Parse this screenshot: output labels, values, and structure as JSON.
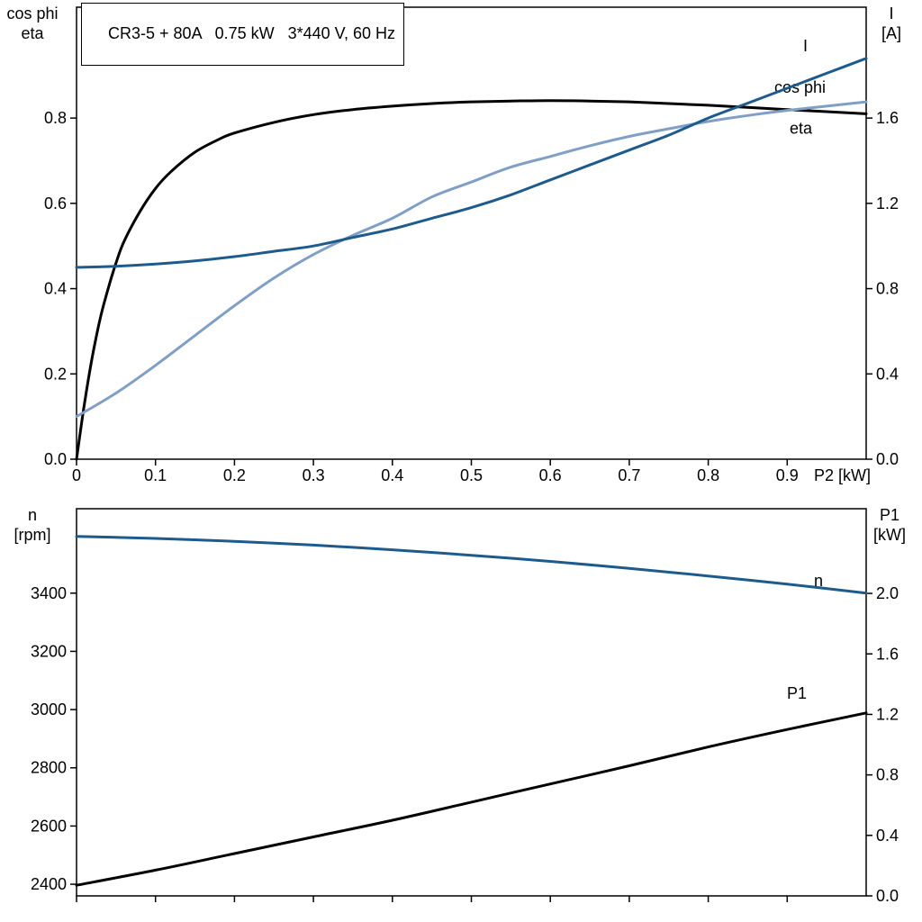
{
  "colors": {
    "black": "#000000",
    "dark_blue": "#1d5b8c",
    "light_blue": "#7f9fc6",
    "background": "#ffffff"
  },
  "title_box": {
    "text": "CR3-5 + 80A   0.75 kW   3*440 V, 60 Hz"
  },
  "chart_data": [
    {
      "type": "line",
      "name": "motor-efficiency-chart",
      "title": "CR3-5 + 80A   0.75 kW   3*440 V, 60 Hz",
      "grid": false,
      "x": {
        "label_end": "P2 [kW]",
        "min": 0,
        "max": 1.0,
        "ticks": [
          0,
          0.1,
          0.2,
          0.3,
          0.4,
          0.5,
          0.6,
          0.7,
          0.8,
          0.9
        ],
        "tick_labels": [
          "0",
          "0.1",
          "0.2",
          "0.3",
          "0.4",
          "0.5",
          "0.6",
          "0.7",
          "0.8",
          "0.9"
        ]
      },
      "left_axis": {
        "title_lines": [
          "cos phi",
          "eta"
        ],
        "min": 0,
        "max": 1.06,
        "ticks": [
          0.0,
          0.2,
          0.4,
          0.6,
          0.8
        ],
        "tick_labels": [
          "0.0",
          "0.2",
          "0.4",
          "0.6",
          "0.8"
        ]
      },
      "right_axis": {
        "title_lines": [
          "I",
          "[A]"
        ],
        "min": 0,
        "max": 2.12,
        "ticks": [
          0.0,
          0.4,
          0.8,
          1.2,
          1.6
        ],
        "tick_labels": [
          "0.0",
          "0.4",
          "0.8",
          "1.2",
          "1.6"
        ]
      },
      "series": [
        {
          "name": "eta",
          "label": "eta",
          "axis": "left",
          "color_key": "black",
          "label_dx": -85,
          "label_dy": 22,
          "points": [
            [
              0,
              0
            ],
            [
              0.01,
              0.13
            ],
            [
              0.02,
              0.24
            ],
            [
              0.03,
              0.33
            ],
            [
              0.04,
              0.4
            ],
            [
              0.05,
              0.46
            ],
            [
              0.06,
              0.51
            ],
            [
              0.08,
              0.58
            ],
            [
              0.1,
              0.635
            ],
            [
              0.12,
              0.675
            ],
            [
              0.15,
              0.72
            ],
            [
              0.18,
              0.75
            ],
            [
              0.2,
              0.765
            ],
            [
              0.25,
              0.79
            ],
            [
              0.3,
              0.808
            ],
            [
              0.35,
              0.82
            ],
            [
              0.4,
              0.828
            ],
            [
              0.45,
              0.834
            ],
            [
              0.5,
              0.838
            ],
            [
              0.55,
              0.84
            ],
            [
              0.6,
              0.841
            ],
            [
              0.65,
              0.84
            ],
            [
              0.7,
              0.838
            ],
            [
              0.75,
              0.834
            ],
            [
              0.8,
              0.83
            ],
            [
              0.85,
              0.825
            ],
            [
              0.9,
              0.82
            ],
            [
              0.95,
              0.815
            ],
            [
              1.0,
              0.81
            ]
          ]
        },
        {
          "name": "cos-phi",
          "label": "cos phi",
          "axis": "left",
          "color_key": "light_blue",
          "label_dx": -102,
          "label_dy": -10,
          "points": [
            [
              0,
              0.1
            ],
            [
              0.05,
              0.155
            ],
            [
              0.1,
              0.22
            ],
            [
              0.15,
              0.29
            ],
            [
              0.2,
              0.36
            ],
            [
              0.25,
              0.425
            ],
            [
              0.3,
              0.48
            ],
            [
              0.35,
              0.525
            ],
            [
              0.4,
              0.565
            ],
            [
              0.45,
              0.615
            ],
            [
              0.5,
              0.65
            ],
            [
              0.55,
              0.685
            ],
            [
              0.6,
              0.71
            ],
            [
              0.65,
              0.735
            ],
            [
              0.7,
              0.757
            ],
            [
              0.75,
              0.775
            ],
            [
              0.8,
              0.792
            ],
            [
              0.85,
              0.806
            ],
            [
              0.9,
              0.818
            ],
            [
              0.95,
              0.828
            ],
            [
              1.0,
              0.838
            ]
          ]
        },
        {
          "name": "current",
          "label": "I",
          "axis": "right",
          "color_key": "dark_blue",
          "label_dx": -70,
          "label_dy": -8,
          "points": [
            [
              0,
              0.9
            ],
            [
              0.05,
              0.905
            ],
            [
              0.1,
              0.915
            ],
            [
              0.15,
              0.93
            ],
            [
              0.2,
              0.95
            ],
            [
              0.25,
              0.975
            ],
            [
              0.3,
              1.0
            ],
            [
              0.35,
              1.04
            ],
            [
              0.4,
              1.08
            ],
            [
              0.45,
              1.13
            ],
            [
              0.5,
              1.18
            ],
            [
              0.55,
              1.24
            ],
            [
              0.6,
              1.31
            ],
            [
              0.65,
              1.38
            ],
            [
              0.7,
              1.45
            ],
            [
              0.75,
              1.52
            ],
            [
              0.8,
              1.6
            ],
            [
              0.85,
              1.67
            ],
            [
              0.9,
              1.74
            ],
            [
              0.95,
              1.81
            ],
            [
              1.0,
              1.88
            ]
          ]
        }
      ]
    },
    {
      "type": "line",
      "name": "speed-power-chart",
      "title": "",
      "grid": false,
      "x": {
        "label_end": "",
        "min": 0,
        "max": 1.0,
        "ticks": [
          0,
          0.1,
          0.2,
          0.3,
          0.4,
          0.5,
          0.6,
          0.7,
          0.8,
          0.9
        ],
        "tick_labels": []
      },
      "left_axis": {
        "title_lines": [
          "n",
          "[rpm]"
        ],
        "min": 2360,
        "max": 3690,
        "ticks": [
          2400,
          2600,
          2800,
          3000,
          3200,
          3400
        ],
        "tick_labels": [
          "2400",
          "2600",
          "2800",
          "3000",
          "3200",
          "3400"
        ]
      },
      "right_axis": {
        "title_lines": [
          "P1",
          "[kW]"
        ],
        "min": 0,
        "max": 2.56,
        "ticks": [
          0.0,
          0.4,
          0.8,
          1.2,
          1.6,
          2.0
        ],
        "tick_labels": [
          "0.0",
          "0.4",
          "0.8",
          "1.2",
          "1.6",
          "2.0"
        ]
      },
      "series": [
        {
          "name": "speed",
          "label": "n",
          "axis": "left",
          "color_key": "dark_blue",
          "label_dx": -58,
          "label_dy": -8,
          "points": [
            [
              0,
              3595
            ],
            [
              0.1,
              3588
            ],
            [
              0.2,
              3578
            ],
            [
              0.3,
              3565
            ],
            [
              0.4,
              3549
            ],
            [
              0.5,
              3530
            ],
            [
              0.6,
              3509
            ],
            [
              0.7,
              3485
            ],
            [
              0.8,
              3459
            ],
            [
              0.9,
              3431
            ],
            [
              1.0,
              3400
            ]
          ]
        },
        {
          "name": "input-power",
          "label": "P1",
          "axis": "right",
          "color_key": "black",
          "label_dx": -88,
          "label_dy": -16,
          "points": [
            [
              0,
              0.07
            ],
            [
              0.1,
              0.17
            ],
            [
              0.2,
              0.28
            ],
            [
              0.3,
              0.39
            ],
            [
              0.4,
              0.5
            ],
            [
              0.5,
              0.62
            ],
            [
              0.6,
              0.74
            ],
            [
              0.7,
              0.86
            ],
            [
              0.8,
              0.985
            ],
            [
              0.9,
              1.1
            ],
            [
              1.0,
              1.21
            ]
          ]
        }
      ]
    }
  ]
}
